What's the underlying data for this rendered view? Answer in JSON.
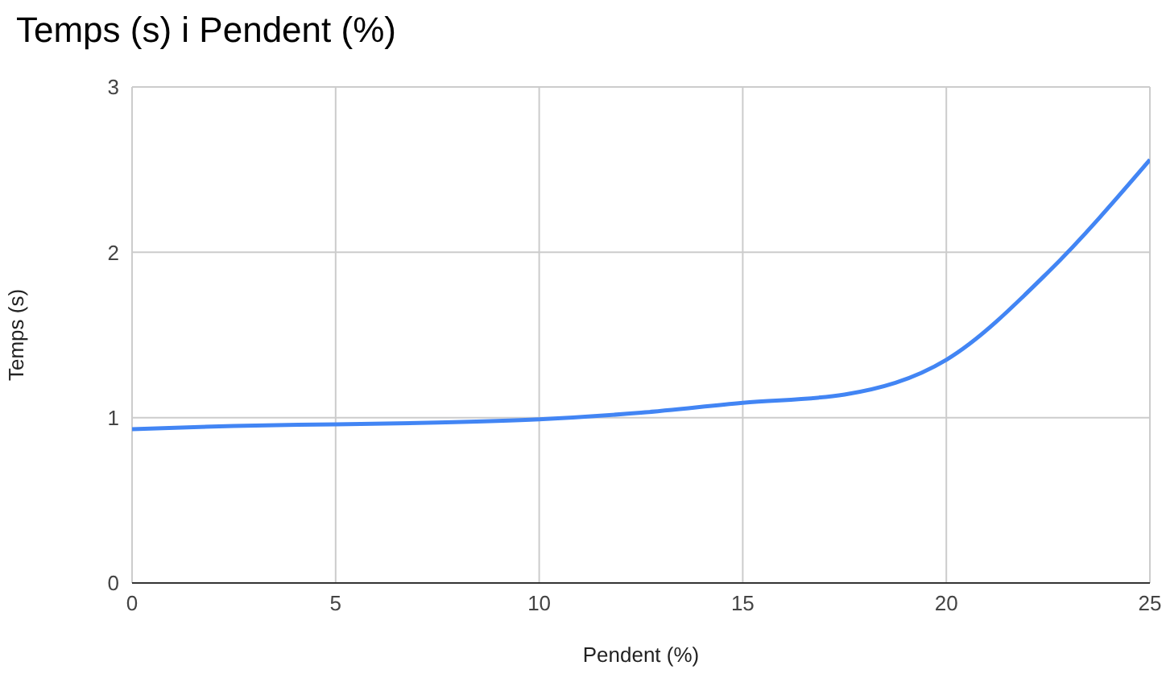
{
  "chart_data": {
    "type": "line",
    "title": "Temps (s) i Pendent (%)",
    "xlabel": "Pendent (%)",
    "ylabel": "Temps (s)",
    "x": [
      0,
      2.5,
      5,
      7.5,
      10,
      12.5,
      15,
      17.5,
      20,
      22.5,
      25
    ],
    "series": [
      {
        "color": "#4285f4",
        "values": [
          0.93,
          0.95,
          0.96,
          0.97,
          0.99,
          1.03,
          1.09,
          1.14,
          1.35,
          1.88,
          2.56
        ]
      }
    ],
    "xlim": [
      0,
      25
    ],
    "xticks": [
      0,
      5,
      10,
      15,
      20,
      25
    ],
    "ylim": [
      0,
      3
    ],
    "yticks": [
      0,
      1,
      2,
      3
    ],
    "grid": true,
    "marker": "none",
    "line_style": "solid"
  }
}
